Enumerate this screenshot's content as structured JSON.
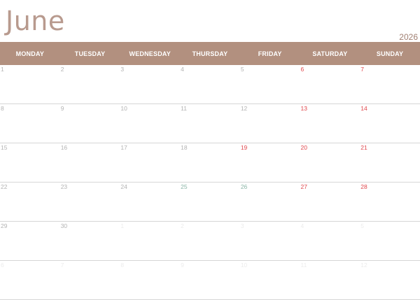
{
  "calendar": {
    "month": "June",
    "year": "2026",
    "weekdays": [
      "MONDAY",
      "TUESDAY",
      "WEDNESDAY",
      "THURSDAY",
      "FRIDAY",
      "SATURDAY",
      "SUNDAY"
    ],
    "weeks": [
      [
        {
          "d": "1",
          "t": "n"
        },
        {
          "d": "2",
          "t": "n"
        },
        {
          "d": "3",
          "t": "n"
        },
        {
          "d": "4",
          "t": "n"
        },
        {
          "d": "5",
          "t": "n"
        },
        {
          "d": "6",
          "t": "w"
        },
        {
          "d": "7",
          "t": "w"
        }
      ],
      [
        {
          "d": "8",
          "t": "n"
        },
        {
          "d": "9",
          "t": "n"
        },
        {
          "d": "10",
          "t": "n"
        },
        {
          "d": "11",
          "t": "n"
        },
        {
          "d": "12",
          "t": "n"
        },
        {
          "d": "13",
          "t": "w"
        },
        {
          "d": "14",
          "t": "w"
        }
      ],
      [
        {
          "d": "15",
          "t": "n"
        },
        {
          "d": "16",
          "t": "n"
        },
        {
          "d": "17",
          "t": "n"
        },
        {
          "d": "18",
          "t": "n"
        },
        {
          "d": "19",
          "t": "w"
        },
        {
          "d": "20",
          "t": "w"
        },
        {
          "d": "21",
          "t": "w"
        }
      ],
      [
        {
          "d": "22",
          "t": "n"
        },
        {
          "d": "23",
          "t": "n"
        },
        {
          "d": "24",
          "t": "n"
        },
        {
          "d": "25",
          "t": "a"
        },
        {
          "d": "26",
          "t": "a"
        },
        {
          "d": "27",
          "t": "w"
        },
        {
          "d": "28",
          "t": "w"
        }
      ],
      [
        {
          "d": "29",
          "t": "n"
        },
        {
          "d": "30",
          "t": "n"
        },
        {
          "d": "1",
          "t": "f"
        },
        {
          "d": "2",
          "t": "f"
        },
        {
          "d": "3",
          "t": "f"
        },
        {
          "d": "4",
          "t": "f"
        },
        {
          "d": "5",
          "t": "f"
        }
      ],
      [
        {
          "d": "6",
          "t": "f"
        },
        {
          "d": "7",
          "t": "f"
        },
        {
          "d": "8",
          "t": "f"
        },
        {
          "d": "9",
          "t": "f"
        },
        {
          "d": "10",
          "t": "f"
        },
        {
          "d": "11",
          "t": "f"
        },
        {
          "d": "12",
          "t": "f"
        }
      ]
    ]
  },
  "colors": {
    "header_bg": "#b2907f",
    "weekend": "#e0474c",
    "accent": "#8ab5a6",
    "title": "#b89a8e"
  }
}
